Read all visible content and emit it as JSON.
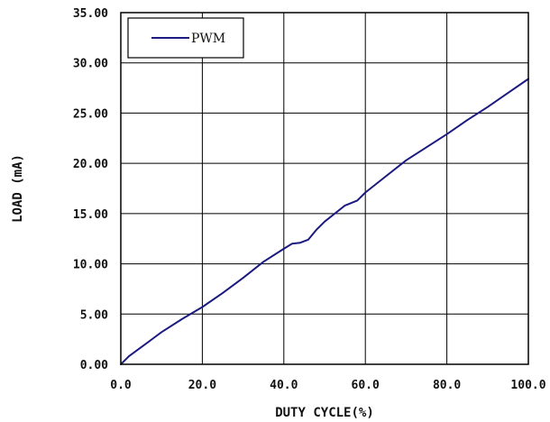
{
  "chart_data": {
    "type": "line",
    "xlabel": "DUTY CYCLE(%)",
    "ylabel": "LOAD (mA)",
    "xlim": [
      0,
      100
    ],
    "ylim": [
      0,
      35
    ],
    "x_ticks": [
      "0.0",
      "20.0",
      "40.0",
      "60.0",
      "80.0",
      "100.0"
    ],
    "y_ticks": [
      "0.00",
      "5.00",
      "10.00",
      "15.00",
      "20.00",
      "25.00",
      "30.00",
      "35.00"
    ],
    "grid": true,
    "legend_position": "top-left",
    "series": [
      {
        "name": "PWM",
        "color": "#1a1a80",
        "x": [
          0,
          2,
          5,
          8,
          10,
          15,
          20,
          25,
          30,
          35,
          40,
          42,
          44,
          46,
          48,
          50,
          55,
          58,
          60,
          65,
          70,
          75,
          80,
          85,
          90,
          95,
          100
        ],
        "y": [
          0,
          0.8,
          1.7,
          2.6,
          3.2,
          4.5,
          5.7,
          7.1,
          8.6,
          10.2,
          11.5,
          12.0,
          12.1,
          12.4,
          13.4,
          14.2,
          15.8,
          16.3,
          17.1,
          18.7,
          20.3,
          21.6,
          22.9,
          24.3,
          25.6,
          27.0,
          28.4
        ]
      }
    ]
  }
}
